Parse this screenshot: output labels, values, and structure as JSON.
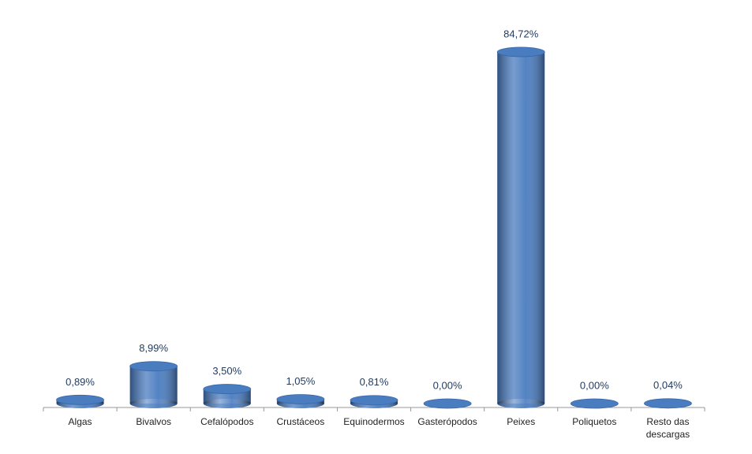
{
  "chart_data": {
    "type": "bar",
    "categories": [
      "Algas",
      "Bivalvos",
      "Cefalópodos",
      "Crustáceos",
      "Equinodermos",
      "Gasterópodos",
      "Peixes",
      "Poliquetos",
      "Resto das descargas"
    ],
    "values": [
      0.89,
      8.99,
      3.5,
      1.05,
      0.81,
      0.0,
      84.72,
      0.0,
      0.04
    ],
    "value_labels": [
      "0,89%",
      "8,99%",
      "3,50%",
      "1,05%",
      "0,81%",
      "0,00%",
      "84,72%",
      "0,00%",
      "0,04%"
    ],
    "color": "#4a7cc0"
  }
}
